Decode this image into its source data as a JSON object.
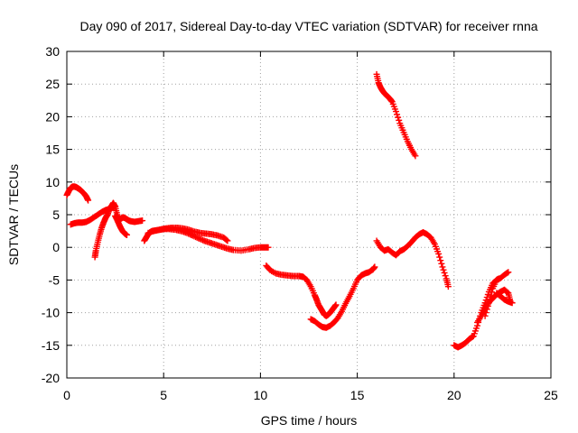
{
  "chart_data": {
    "type": "scatter",
    "title": "Day 090 of 2017, Sidereal Day-to-day VTEC variation (SDTVAR) for receiver rnna",
    "xlabel": "GPS time / hours",
    "ylabel": "SDTVAR / TECUs",
    "xlim": [
      0,
      25
    ],
    "ylim": [
      -20,
      30
    ],
    "xticks": [
      0,
      5,
      10,
      15,
      20,
      25
    ],
    "yticks": [
      -20,
      -15,
      -10,
      -5,
      0,
      5,
      10,
      15,
      20,
      25,
      30
    ],
    "grid": true,
    "legend": "none",
    "marker": "plus",
    "color": "#ff0000",
    "tracks": [
      {
        "x": [
          0.0,
          0.1,
          0.2,
          0.3,
          0.4,
          0.5,
          0.6,
          0.7,
          0.8,
          0.9,
          1.0,
          1.1
        ],
        "y": [
          8.0,
          8.6,
          9.1,
          9.3,
          9.3,
          9.2,
          9.0,
          8.8,
          8.5,
          8.2,
          7.8,
          7.2
        ]
      },
      {
        "x": [
          0.2,
          0.4,
          0.6,
          0.8,
          1.0,
          1.2,
          1.4,
          1.6,
          1.8,
          2.0,
          2.2,
          2.4,
          2.5
        ],
        "y": [
          3.5,
          3.7,
          3.8,
          3.8,
          3.9,
          4.2,
          4.6,
          5.0,
          5.4,
          5.7,
          5.9,
          6.1,
          6.3
        ]
      },
      {
        "x": [
          1.45,
          1.5,
          1.6,
          1.7,
          1.8,
          1.9,
          2.0,
          2.1,
          2.2,
          2.3,
          2.4,
          2.5,
          2.6,
          2.7,
          2.8,
          2.9,
          3.0,
          3.1,
          3.2,
          3.3,
          3.5,
          3.7,
          3.9
        ],
        "y": [
          -1.5,
          -0.5,
          0.8,
          2.0,
          3.0,
          3.8,
          4.5,
          5.0,
          5.8,
          6.3,
          6.8,
          6.2,
          5.0,
          4.2,
          4.4,
          4.6,
          4.5,
          4.3,
          4.1,
          4.0,
          3.9,
          4.0,
          4.1
        ]
      },
      {
        "x": [
          2.5,
          2.6,
          2.7,
          2.8,
          2.9,
          3.0,
          3.1
        ],
        "y": [
          4.8,
          4.2,
          3.5,
          2.9,
          2.4,
          2.1,
          1.9
        ]
      },
      {
        "x": [
          4.0,
          4.1,
          4.2,
          4.3,
          4.4,
          4.6,
          4.8,
          5.0,
          5.3,
          5.6,
          5.9,
          6.2,
          6.5,
          6.8,
          7.1,
          7.4,
          7.7,
          8.0,
          8.3,
          8.6,
          9.0,
          9.4,
          9.7,
          10.0,
          10.2,
          10.4
        ],
        "y": [
          1.0,
          1.5,
          2.0,
          2.3,
          2.5,
          2.6,
          2.7,
          2.8,
          2.8,
          2.7,
          2.5,
          2.2,
          1.8,
          1.4,
          1.0,
          0.7,
          0.4,
          0.1,
          -0.2,
          -0.4,
          -0.5,
          -0.3,
          -0.1,
          0.0,
          0.0,
          0.0
        ]
      },
      {
        "x": [
          4.2,
          4.5,
          4.8,
          5.1,
          5.4,
          5.7,
          6.0,
          6.3,
          6.6,
          6.9,
          7.2,
          7.5,
          7.8,
          8.1,
          8.3
        ],
        "y": [
          2.2,
          2.5,
          2.7,
          2.9,
          3.0,
          3.0,
          2.9,
          2.7,
          2.4,
          2.2,
          2.1,
          2.0,
          1.8,
          1.5,
          1.0
        ]
      },
      {
        "x": [
          10.3,
          10.5,
          10.8,
          11.1,
          11.4,
          11.7,
          12.0,
          12.2,
          12.4,
          12.6,
          12.8,
          12.9,
          13.0,
          13.1,
          13.2,
          13.3,
          13.4,
          13.5,
          13.6,
          13.7,
          13.8,
          13.9
        ],
        "y": [
          -2.8,
          -3.5,
          -4.0,
          -4.2,
          -4.3,
          -4.4,
          -4.4,
          -4.5,
          -5.0,
          -6.0,
          -7.3,
          -8.0,
          -8.8,
          -9.3,
          -9.8,
          -10.3,
          -10.5,
          -10.3,
          -10.0,
          -9.6,
          -9.2,
          -8.8
        ]
      },
      {
        "x": [
          12.6,
          12.8,
          13.0,
          13.2,
          13.4,
          13.6,
          13.8,
          14.0,
          14.2,
          14.4,
          14.6,
          14.8,
          15.0,
          15.2,
          15.4,
          15.6,
          15.8,
          15.9
        ],
        "y": [
          -11.0,
          -11.3,
          -11.8,
          -12.2,
          -12.3,
          -12.0,
          -11.5,
          -10.8,
          -9.8,
          -8.6,
          -7.5,
          -6.3,
          -5.0,
          -4.3,
          -4.0,
          -3.8,
          -3.4,
          -3.0
        ]
      },
      {
        "x": [
          16.0,
          16.1,
          16.2,
          16.3,
          16.4,
          16.5,
          16.6,
          16.7,
          16.8,
          17.0,
          17.2,
          17.4,
          17.6,
          17.8,
          18.0
        ],
        "y": [
          26.5,
          25.2,
          24.5,
          24.0,
          23.6,
          23.3,
          23.0,
          22.7,
          22.3,
          20.8,
          19.0,
          17.6,
          16.2,
          15.0,
          14.0
        ]
      },
      {
        "x": [
          16.0,
          16.2,
          16.4,
          16.6,
          16.8,
          17.0,
          17.2,
          17.4,
          17.6,
          17.8,
          18.0,
          18.2,
          18.4,
          18.6,
          18.8,
          19.0,
          19.2,
          19.4,
          19.6,
          19.7
        ],
        "y": [
          1.0,
          0.0,
          -0.5,
          -0.3,
          -0.8,
          -1.2,
          -0.6,
          -0.3,
          0.2,
          0.8,
          1.5,
          2.0,
          2.3,
          2.0,
          1.5,
          0.5,
          -1.0,
          -3.0,
          -4.8,
          -6.0
        ]
      },
      {
        "x": [
          20.0,
          20.2,
          20.4,
          20.6,
          20.8,
          21.0,
          21.2,
          21.4,
          21.6,
          21.8,
          22.0,
          22.2,
          22.3
        ],
        "y": [
          -15.0,
          -15.3,
          -15.0,
          -14.6,
          -14.0,
          -13.6,
          -12.0,
          -10.0,
          -8.5,
          -6.8,
          -5.5,
          -5.0,
          -4.8
        ]
      },
      {
        "x": [
          21.2,
          21.4,
          21.6,
          21.8,
          22.0,
          22.2,
          22.4,
          22.6,
          22.8,
          22.9
        ],
        "y": [
          -11.5,
          -10.5,
          -9.5,
          -8.4,
          -7.8,
          -7.2,
          -6.8,
          -6.5,
          -7.0,
          -8.2
        ]
      },
      {
        "x": [
          21.6,
          21.8,
          22.0,
          22.2,
          22.4,
          22.6,
          22.8
        ],
        "y": [
          -10.5,
          -8.5,
          -6.3,
          -5.0,
          -4.7,
          -4.2,
          -3.8
        ]
      },
      {
        "x": [
          22.2,
          22.4,
          22.6,
          22.8,
          23.0
        ],
        "y": [
          -7.0,
          -7.5,
          -8.0,
          -8.3,
          -8.5
        ]
      }
    ]
  }
}
